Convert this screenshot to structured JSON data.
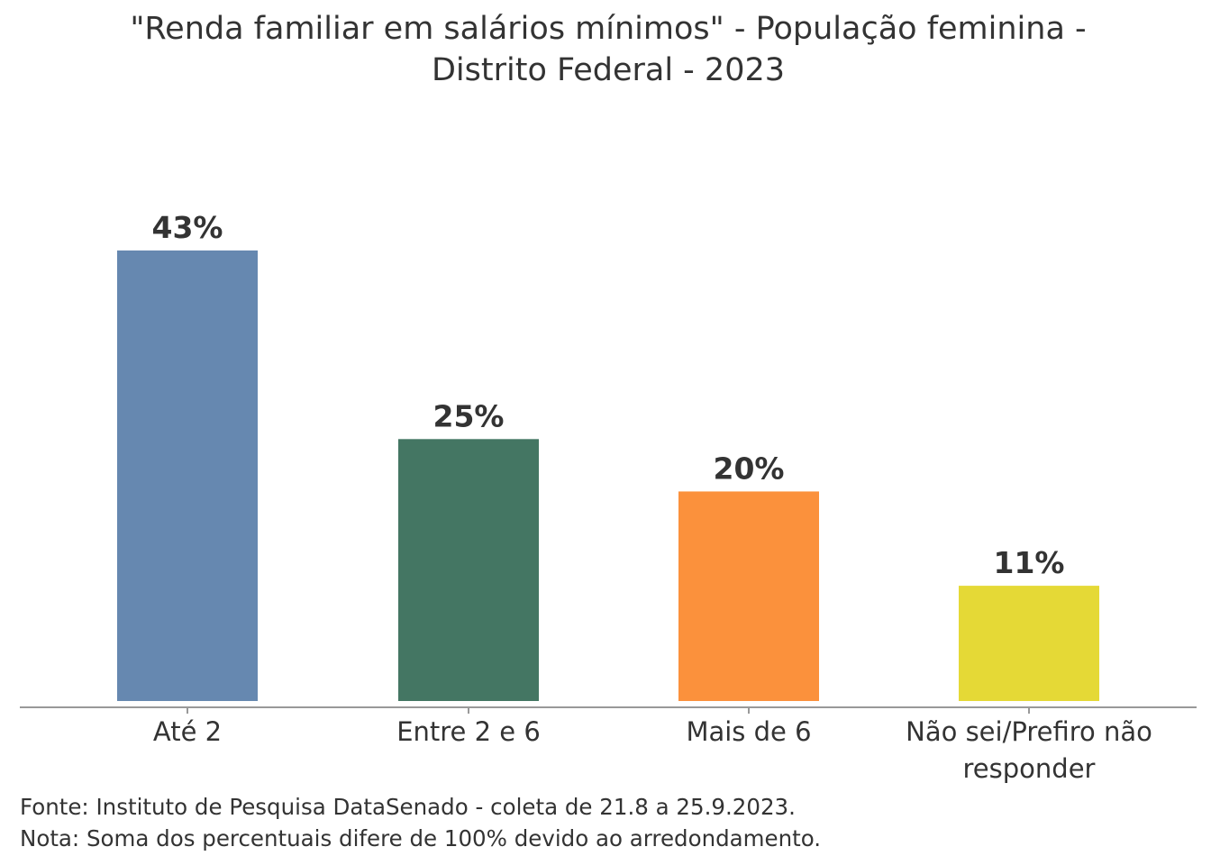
{
  "chart_data": {
    "type": "bar",
    "title": [
      "\"Renda familiar em salários mínimos\" - População feminina -",
      "Distrito Federal - 2023"
    ],
    "categories": [
      [
        "Até 2"
      ],
      [
        "Entre 2 e 6"
      ],
      [
        "Mais de 6"
      ],
      [
        "Não sei/Prefiro não",
        "responder"
      ]
    ],
    "values": [
      43,
      25,
      20,
      11
    ],
    "value_labels": [
      "43%",
      "25%",
      "20%",
      "11%"
    ],
    "colors": [
      "#6688b0",
      "#447663",
      "#fb913c",
      "#e5d936"
    ],
    "xlabel": "",
    "ylabel": "",
    "ylim": [
      0,
      43
    ],
    "grid": false
  },
  "notes": [
    "Fonte: Instituto de Pesquisa DataSenado - coleta de 21.8 a 25.9.2023.",
    "Nota: Soma dos percentuais difere de 100% devido ao arredondamento."
  ]
}
